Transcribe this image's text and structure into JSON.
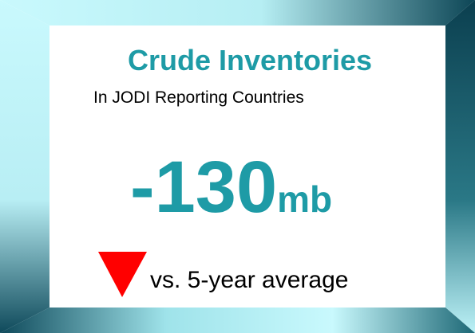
{
  "card": {
    "title": "Crude Inventories",
    "subtitle": "In JODI Reporting Countries",
    "value": "-130",
    "unit": "mb",
    "comparison": "vs. 5-year average"
  }
}
